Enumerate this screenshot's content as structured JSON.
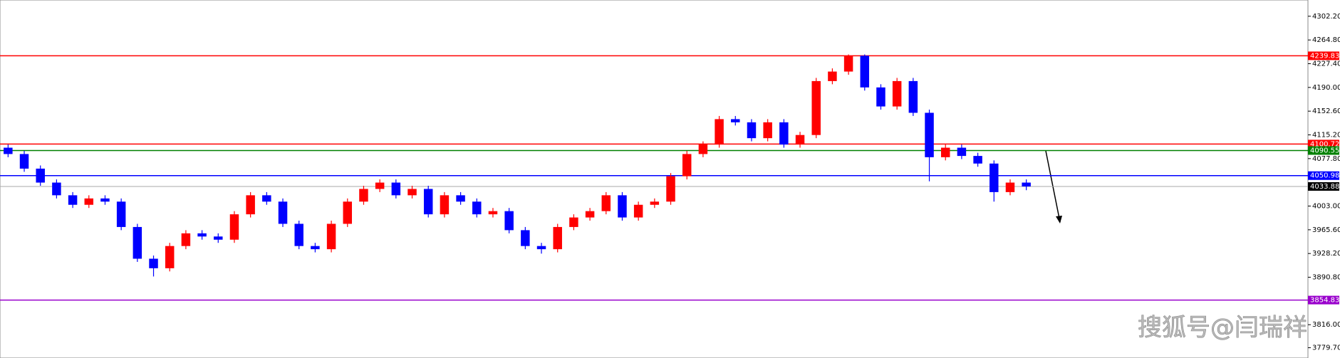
{
  "chart_data": {
    "type": "candlestick",
    "ylim": [
      3763.5,
      4327.8
    ],
    "yticks": [
      {
        "value": 4302.2,
        "label": "4302.20"
      },
      {
        "value": 4264.8,
        "label": "4264.80"
      },
      {
        "value": 4227.4,
        "label": "4227.40"
      },
      {
        "value": 4190,
        "label": "4190.00"
      },
      {
        "value": 4152.6,
        "label": "4152.60"
      },
      {
        "value": 4115.2,
        "label": "4115.20"
      },
      {
        "value": 4077.8,
        "label": "4077.80"
      },
      {
        "value": 4003,
        "label": "4003.00"
      },
      {
        "value": 3965.6,
        "label": "3965.60"
      },
      {
        "value": 3928.2,
        "label": "3928.20"
      },
      {
        "value": 3890.8,
        "label": "3890.80"
      },
      {
        "value": 3816,
        "label": "3816.00"
      },
      {
        "value": 3779.7,
        "label": "3779.70"
      }
    ],
    "up_color": "#ff0000",
    "down_color": "#0000ff",
    "open": [
      4095,
      4085,
      4062,
      4040,
      4020,
      4005,
      4015,
      4010,
      3970,
      3920,
      3905,
      3940,
      3960,
      3955,
      3950,
      3990,
      4020,
      4010,
      3975,
      3940,
      3935,
      3975,
      4010,
      4030,
      4040,
      4020,
      4030,
      3990,
      4020,
      4010,
      3990,
      3995,
      3965,
      3940,
      3935,
      3970,
      3985,
      3995,
      4020,
      3985,
      4005,
      4010,
      4050,
      4085,
      4100,
      4140,
      4135,
      4110,
      4135,
      4100,
      4115,
      4200,
      4215,
      4240,
      4190,
      4160,
      4200,
      4150,
      4080,
      4095,
      4082,
      4070,
      4025,
      4040
    ],
    "high": [
      4100,
      4090,
      4067,
      4045,
      4025,
      4020,
      4020,
      4015,
      3975,
      3925,
      3945,
      3965,
      3965,
      3960,
      3995,
      4025,
      4025,
      4015,
      3980,
      3945,
      3980,
      4015,
      4035,
      4045,
      4045,
      4035,
      4035,
      4025,
      4025,
      4015,
      4000,
      4000,
      3970,
      3945,
      3975,
      3990,
      4000,
      4025,
      4025,
      4010,
      4015,
      4055,
      4090,
      4105,
      4145,
      4145,
      4140,
      4140,
      4140,
      4120,
      4205,
      4220,
      4242,
      4242,
      4195,
      4205,
      4205,
      4155,
      4100,
      4100,
      4087,
      4075,
      4045,
      4045
    ],
    "low": [
      4080,
      4057,
      4035,
      4015,
      4000,
      4000,
      4005,
      3965,
      3915,
      3892,
      3900,
      3935,
      3950,
      3945,
      3945,
      3985,
      4005,
      3970,
      3935,
      3930,
      3930,
      3970,
      4005,
      4025,
      4015,
      4015,
      3985,
      3985,
      4005,
      3985,
      3985,
      3960,
      3935,
      3928,
      3930,
      3965,
      3980,
      3990,
      3980,
      3980,
      4000,
      4005,
      4045,
      4080,
      4095,
      4130,
      4105,
      4105,
      4095,
      4095,
      4110,
      4195,
      4210,
      4185,
      4155,
      4155,
      4145,
      4042,
      4075,
      4077,
      4065,
      4010,
      4020,
      4028
    ],
    "close": [
      4085,
      4062,
      4040,
      4020,
      4005,
      4015,
      4010,
      3970,
      3920,
      3905,
      3940,
      3960,
      3955,
      3950,
      3990,
      4020,
      4010,
      3975,
      3940,
      3935,
      3975,
      4010,
      4030,
      4040,
      4020,
      4030,
      3990,
      4020,
      4010,
      3990,
      3995,
      3965,
      3940,
      3935,
      3970,
      3985,
      3995,
      4020,
      3985,
      4005,
      4010,
      4050,
      4085,
      4100,
      4140,
      4135,
      4110,
      4135,
      4100,
      4115,
      4200,
      4215,
      4240,
      4190,
      4160,
      4200,
      4150,
      4080,
      4095,
      4082,
      4070,
      4025,
      4040,
      4033.88
    ],
    "levels": [
      {
        "value": 4239.83,
        "color": "#ff0000"
      },
      {
        "value": 4100.72,
        "color": "#ff0000"
      },
      {
        "value": 4090.55,
        "color": "#008000"
      },
      {
        "value": 4050.98,
        "color": "#0000ff"
      },
      {
        "value": 4033.88,
        "color": "#000000"
      },
      {
        "value": 3854.83,
        "color": "#9900cc"
      }
    ],
    "watermark": "搜狐号@闫瑞祥"
  }
}
